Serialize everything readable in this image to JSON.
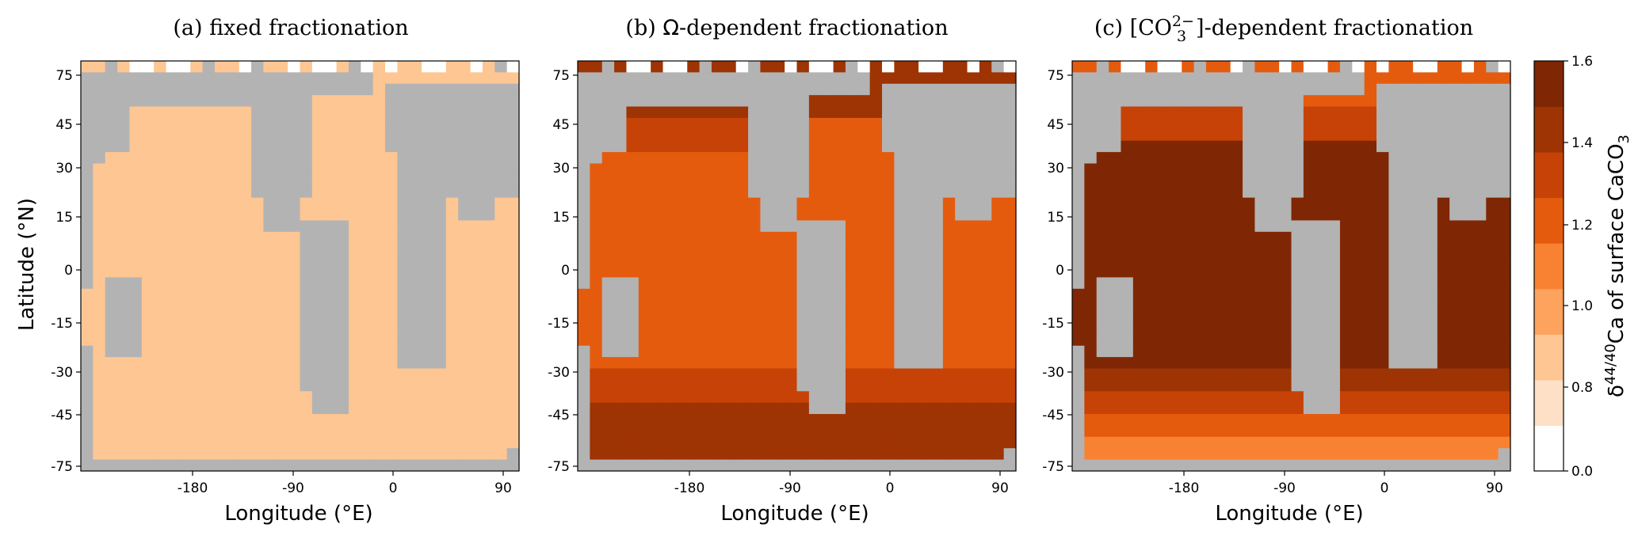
{
  "figure": {
    "ylabel": "Latitude (°N)",
    "colorbar_label": "δ44/40Ca of surface CaCO3",
    "colorbar_ticks": [
      "0.0",
      "0.8",
      "1.0",
      "1.2",
      "1.4",
      "1.6"
    ],
    "colors": {
      "land": "#b3b3b3",
      "bins": [
        "#ffffff",
        "#fde0c5",
        "#fdc692",
        "#fda35e",
        "#f98232",
        "#e55b0e",
        "#c74206",
        "#9e3303",
        "#7f2704"
      ]
    }
  },
  "chart_data": [
    {
      "type": "heatmap",
      "title": "(a) fixed fractionation",
      "xlabel": "Longitude (°E)",
      "ylabel": "Latitude (°N)",
      "xticks": [
        "-180",
        "-90",
        "0",
        "90"
      ],
      "yticks": [
        "75",
        "45",
        "30",
        "15",
        "0",
        "-15",
        "-30",
        "-45",
        "-75"
      ],
      "ocean_level": 2,
      "scheme": "fixed"
    },
    {
      "type": "heatmap",
      "title": "(b) Ω-dependent fractionation",
      "xlabel": "Longitude (°E)",
      "ylabel": "",
      "xticks": [
        "-180",
        "-90",
        "0",
        "90"
      ],
      "yticks": [
        "75",
        "45",
        "30",
        "15",
        "0",
        "-15",
        "-30",
        "-45",
        "-75"
      ],
      "ocean_level": 5,
      "scheme": "omega"
    },
    {
      "type": "heatmap",
      "title": "(c) [CO32−]-dependent fractionation",
      "xlabel": "Longitude (°E)",
      "ylabel": "",
      "xticks": [
        "-180",
        "-90",
        "0",
        "90"
      ],
      "yticks": [
        "75",
        "45",
        "30",
        "15",
        "0",
        "-15",
        "-30",
        "-45",
        "-75"
      ],
      "ocean_level": 8,
      "scheme": "carbonate"
    }
  ]
}
